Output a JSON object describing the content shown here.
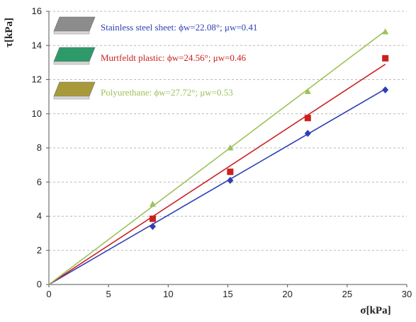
{
  "chart_data": {
    "type": "scatter",
    "title": "",
    "xlabel": "σ[kPa]",
    "ylabel": "τ[kPa]",
    "xlim": [
      0,
      30
    ],
    "ylim": [
      0,
      16
    ],
    "xticks": [
      "0",
      "5",
      "10",
      "15",
      "20",
      "25",
      "30"
    ],
    "yticks": [
      "0",
      "2",
      "4",
      "6",
      "8",
      "10",
      "12",
      "14",
      "16"
    ],
    "grid": "horizontal-dashed",
    "legend_placement": "top-left",
    "series": [
      {
        "name": "Stainless steel sheet: ϕw=22.08°; μw=0.41",
        "marker": "diamond",
        "color": "#2e3fb3",
        "x": [
          8.7,
          15.2,
          21.7,
          28.2
        ],
        "y": [
          3.4,
          6.1,
          8.85,
          11.4
        ],
        "fit": [
          [
            0,
            0
          ],
          [
            28.2,
            11.45
          ]
        ],
        "swatch_color": "#8c8c8c"
      },
      {
        "name": "Murtfeldt plastic: ϕw=24.56°; μw=0.46",
        "marker": "square",
        "color": "#cc1f1f",
        "x": [
          8.7,
          15.2,
          21.7,
          28.2
        ],
        "y": [
          3.85,
          6.6,
          9.75,
          13.25
        ],
        "fit": [
          [
            0,
            0
          ],
          [
            28.2,
            12.9
          ]
        ],
        "swatch_color": "#2e9a6a"
      },
      {
        "name": "Polyurethane: ϕw=27.72°; μw=0.53",
        "marker": "triangle",
        "color": "#9cc25a",
        "x": [
          8.7,
          15.2,
          21.7,
          28.2
        ],
        "y": [
          4.7,
          8.0,
          11.3,
          14.8
        ],
        "fit": [
          [
            0,
            0
          ],
          [
            28.2,
            14.85
          ]
        ],
        "swatch_color": "#a89a3a"
      }
    ]
  }
}
